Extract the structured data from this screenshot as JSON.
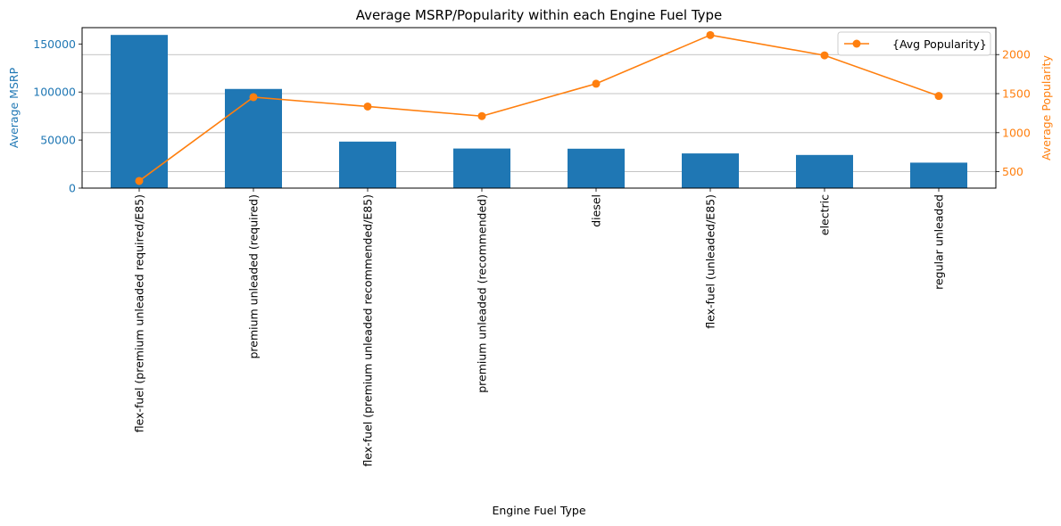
{
  "chart_data": {
    "type": "bar+line",
    "title": "Average MSRP/Popularity within each Engine Fuel Type",
    "xlabel": "Engine Fuel Type",
    "ylabel_left": "Average MSRP",
    "ylabel_right": "Average Popularity",
    "categories": [
      "flex-fuel (premium unleaded required/E85)",
      "premium unleaded (required)",
      "flex-fuel (premium unleaded recommended/E85)",
      "premium unleaded (recommended)",
      "diesel",
      "flex-fuel (unleaded/E85)",
      "electric",
      "regular unleaded"
    ],
    "bars": {
      "axis": "left",
      "color": "#1f77b4",
      "values": [
        159400,
        103200,
        48400,
        41200,
        41000,
        36100,
        34500,
        26500
      ]
    },
    "line": {
      "name": "{Avg Popularity}",
      "axis": "right",
      "color": "#ff7f0e",
      "values": [
        382,
        1455,
        1335,
        1212,
        1627,
        2250,
        1990,
        1470
      ]
    },
    "yticks_left": [
      0,
      50000,
      100000,
      150000
    ],
    "ylim_left": [
      0,
      167000
    ],
    "yticks_right": [
      500,
      1000,
      1500,
      2000
    ],
    "ylim_right": [
      290,
      2345
    ],
    "left_axis_color": "#1f77b4",
    "right_axis_color": "#ff7f0e",
    "grid": "horizontal (right axis)",
    "legend_position": "upper right"
  }
}
